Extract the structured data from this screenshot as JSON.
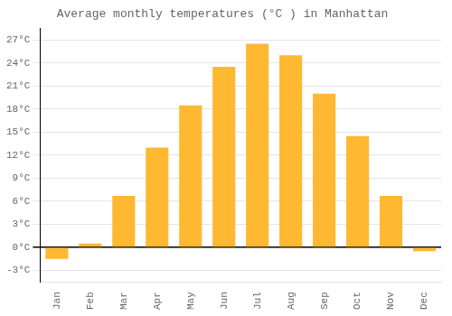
{
  "chart_data": {
    "type": "bar",
    "title": "Average monthly temperatures (°C ) in Manhattan",
    "categories": [
      "Jan",
      "Feb",
      "Mar",
      "Apr",
      "May",
      "Jun",
      "Jul",
      "Aug",
      "Sep",
      "Oct",
      "Nov",
      "Dec"
    ],
    "values": [
      -1.5,
      0.5,
      6.7,
      13.0,
      18.5,
      23.5,
      26.5,
      25.0,
      20.0,
      14.5,
      6.7,
      -0.5
    ],
    "color": "#FFB832",
    "ylim": [
      -4.5,
      28.5
    ],
    "yticks": [
      {
        "value": -3,
        "label": "-3°C"
      },
      {
        "value": 0,
        "label": "0°C"
      },
      {
        "value": 3,
        "label": "3°C"
      },
      {
        "value": 6,
        "label": "6°C"
      },
      {
        "value": 9,
        "label": "9°C"
      },
      {
        "value": 12,
        "label": "12°C"
      },
      {
        "value": 15,
        "label": "15°C"
      },
      {
        "value": 18,
        "label": "18°C"
      },
      {
        "value": 21,
        "label": "21°C"
      },
      {
        "value": 24,
        "label": "24°C"
      },
      {
        "value": 27,
        "label": "27°C"
      }
    ],
    "grid": true
  }
}
